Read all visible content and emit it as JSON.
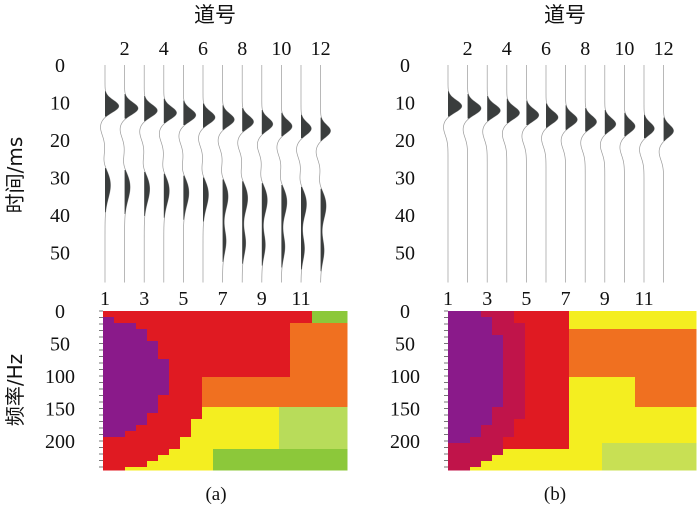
{
  "figure": {
    "panels": [
      {
        "caption": "(a)",
        "top_axis_title": "道号",
        "top_ticks": [
          "2",
          "4",
          "6",
          "8",
          "10",
          "12"
        ],
        "time_ticks": [
          "0",
          "10",
          "20",
          "30",
          "40",
          "50"
        ],
        "bottom_ticks": [
          "1",
          "3",
          "5",
          "7",
          "9",
          "11"
        ],
        "freq_ticks": [
          "0",
          "50",
          "100",
          "150",
          "200"
        ]
      },
      {
        "caption": "(b)",
        "top_axis_title": "道号",
        "top_ticks": [
          "2",
          "4",
          "6",
          "8",
          "10",
          "12"
        ],
        "time_ticks": [
          "0",
          "10",
          "20",
          "30",
          "40",
          "50"
        ],
        "bottom_ticks": [
          "1",
          "3",
          "5",
          "7",
          "9",
          "11"
        ],
        "freq_ticks": [
          "0",
          "50",
          "100",
          "150",
          "200"
        ]
      }
    ],
    "time_axis_label": "时间/ms",
    "freq_axis_label": "频率/Hz",
    "colors": {
      "wiggle_fill": "#3a3d3d",
      "wiggle_line": "#9a9a9a",
      "purple": "#8a1a8a",
      "red": "#e01a22",
      "orange": "#f07020",
      "yellow": "#f4ee20",
      "green": "#8cc83a"
    }
  }
}
